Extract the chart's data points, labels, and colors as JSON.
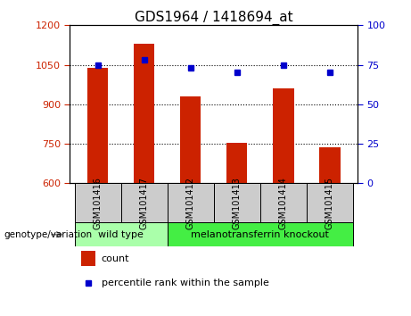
{
  "title": "GDS1964 / 1418694_at",
  "samples": [
    "GSM101416",
    "GSM101417",
    "GSM101412",
    "GSM101413",
    "GSM101414",
    "GSM101415"
  ],
  "counts": [
    1040,
    1130,
    930,
    752,
    960,
    735
  ],
  "percentile_ranks": [
    75,
    78,
    73,
    70,
    75,
    70
  ],
  "ylim_left": [
    600,
    1200
  ],
  "ylim_right": [
    0,
    100
  ],
  "yticks_left": [
    600,
    750,
    900,
    1050,
    1200
  ],
  "yticks_right": [
    0,
    25,
    50,
    75,
    100
  ],
  "bar_color": "#cc2200",
  "dot_color": "#0000cc",
  "grid_color": "#000000",
  "groups": [
    {
      "label": "wild type",
      "indices": [
        0,
        1
      ],
      "color": "#aaffaa"
    },
    {
      "label": "melanotransferrin knockout",
      "indices": [
        2,
        3,
        4,
        5
      ],
      "color": "#44ee44"
    }
  ],
  "group_label_prefix": "genotype/variation",
  "legend_count_label": "count",
  "legend_percentile_label": "percentile rank within the sample",
  "xlabel_area_color": "#cccccc",
  "title_fontsize": 11,
  "tick_fontsize": 8,
  "sample_fontsize": 7,
  "group_fontsize": 8,
  "legend_fontsize": 8
}
